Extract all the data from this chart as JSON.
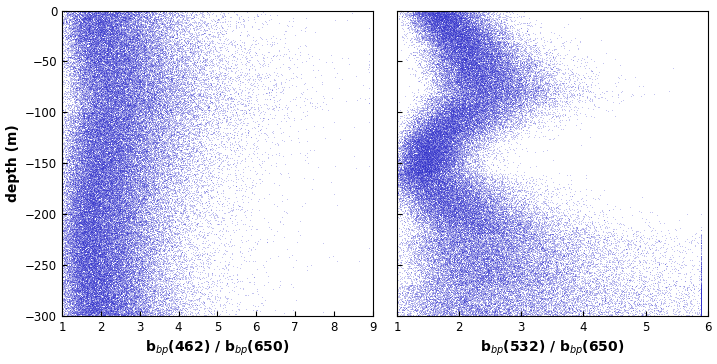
{
  "ylim": [
    -300,
    0
  ],
  "yticks": [
    0,
    -50,
    -100,
    -150,
    -200,
    -250,
    -300
  ],
  "plot1_xlim": [
    1,
    9
  ],
  "plot1_xticks": [
    1,
    2,
    3,
    4,
    5,
    6,
    7,
    8,
    9
  ],
  "plot2_xlim": [
    1,
    6
  ],
  "plot2_xticks": [
    1,
    2,
    3,
    4,
    5,
    6
  ],
  "xlabel1": "b$_{bp}$(462) / b$_{bp}$(650)",
  "xlabel2": "b$_{bp}$(532) / b$_{bp}$(650)",
  "ylabel": "depth (m)",
  "dot_color": "#3333CC",
  "dot_size": 0.3,
  "dot_alpha": 0.35,
  "seed": 42
}
